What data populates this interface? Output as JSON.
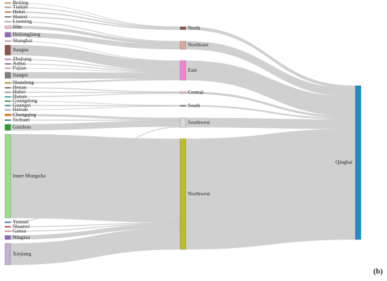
{
  "chart_data": {
    "type": "sankey",
    "link_color": "#c8c8c8",
    "panel_label": "(b)",
    "nodes": [
      {
        "name": "Beijing",
        "color": "#ff9f4a"
      },
      {
        "name": "Tianjin",
        "color": "#c49c94"
      },
      {
        "name": "Hebei",
        "color": "#ff7f0e"
      },
      {
        "name": "Shanxi",
        "color": "#7f7f7f"
      },
      {
        "name": "Liaoning",
        "color": "#c7c7c7"
      },
      {
        "name": "Jilin",
        "color": "#f7b6d2"
      },
      {
        "name": "Heilongjiang",
        "color": "#9467bd"
      },
      {
        "name": "Shanghai",
        "color": "#c5b0d5"
      },
      {
        "name": "Jiangsu",
        "color": "#8c564b"
      },
      {
        "name": "Zhejiang",
        "color": "#e377c2"
      },
      {
        "name": "Anhui",
        "color": "#9467bd"
      },
      {
        "name": "Fujian",
        "color": "#f7b6d2"
      },
      {
        "name": "Jiangxi",
        "color": "#7f7f7f"
      },
      {
        "name": "Shandong",
        "color": "#bcbd22"
      },
      {
        "name": "Henan",
        "color": "#8c564b"
      },
      {
        "name": "Hubei",
        "color": "#9fb3c8"
      },
      {
        "name": "Hunan",
        "color": "#17becf"
      },
      {
        "name": "Guangdong",
        "color": "#2ca02c"
      },
      {
        "name": "Guangxi",
        "color": "#17a2b8"
      },
      {
        "name": "Hainan",
        "color": "#aec7e8"
      },
      {
        "name": "Chongqing",
        "color": "#ff7f0e"
      },
      {
        "name": "Sichuan",
        "color": "#1f77b4"
      },
      {
        "name": "Guizhou",
        "color": "#2ca02c"
      },
      {
        "name": "Inner Mongolia",
        "color": "#98df8a"
      },
      {
        "name": "Yunnan",
        "color": "#1f77b4"
      },
      {
        "name": "Shaanxi",
        "color": "#d62728"
      },
      {
        "name": "Gansu",
        "color": "#ff9896"
      },
      {
        "name": "Ningxia",
        "color": "#9467bd"
      },
      {
        "name": "Xinjiang",
        "color": "#c5b0d5"
      },
      {
        "name": "North",
        "color": "#8c564b"
      },
      {
        "name": "Northeast",
        "color": "#dba99c"
      },
      {
        "name": "East",
        "color": "#f77fcf"
      },
      {
        "name": "Central",
        "color": "#f7b6d2"
      },
      {
        "name": "South",
        "color": "#7f7f7f"
      },
      {
        "name": "Southwest",
        "color": "#d9d9d9"
      },
      {
        "name": "Northwest",
        "color": "#bcbd22"
      },
      {
        "name": "Qinghai",
        "color": "#1f8cc4"
      }
    ],
    "links": [
      {
        "source": 0,
        "target": 29,
        "value": 0.5
      },
      {
        "source": 1,
        "target": 29,
        "value": 1
      },
      {
        "source": 2,
        "target": 29,
        "value": 1.5
      },
      {
        "source": 3,
        "target": 29,
        "value": 1.5
      },
      {
        "source": 4,
        "target": 30,
        "value": 1
      },
      {
        "source": 5,
        "target": 30,
        "value": 4
      },
      {
        "source": 6,
        "target": 30,
        "value": 7
      },
      {
        "source": 7,
        "target": 31,
        "value": 0.5
      },
      {
        "source": 8,
        "target": 31,
        "value": 15
      },
      {
        "source": 9,
        "target": 31,
        "value": 1
      },
      {
        "source": 10,
        "target": 31,
        "value": 1
      },
      {
        "source": 11,
        "target": 31,
        "value": 0.5
      },
      {
        "source": 12,
        "target": 31,
        "value": 9
      },
      {
        "source": 13,
        "target": 31,
        "value": 2
      },
      {
        "source": 14,
        "target": 32,
        "value": 1
      },
      {
        "source": 15,
        "target": 32,
        "value": 1
      },
      {
        "source": 16,
        "target": 32,
        "value": 1
      },
      {
        "source": 17,
        "target": 33,
        "value": 0.5
      },
      {
        "source": 18,
        "target": 33,
        "value": 1
      },
      {
        "source": 19,
        "target": 33,
        "value": 0.5
      },
      {
        "source": 20,
        "target": 34,
        "value": 3
      },
      {
        "source": 21,
        "target": 34,
        "value": 1
      },
      {
        "source": 22,
        "target": 34,
        "value": 9
      },
      {
        "source": 24,
        "target": 34,
        "value": 1
      },
      {
        "source": 23,
        "target": 35,
        "value": 125
      },
      {
        "source": 25,
        "target": 35,
        "value": 1
      },
      {
        "source": 26,
        "target": 35,
        "value": 1
      },
      {
        "source": 27,
        "target": 35,
        "value": 6
      },
      {
        "source": 28,
        "target": 35,
        "value": 32
      },
      {
        "source": 29,
        "target": 36,
        "value": 4.5
      },
      {
        "source": 30,
        "target": 36,
        "value": 12
      },
      {
        "source": 31,
        "target": 36,
        "value": 29
      },
      {
        "source": 32,
        "target": 36,
        "value": 3
      },
      {
        "source": 33,
        "target": 36,
        "value": 2
      },
      {
        "source": 34,
        "target": 36,
        "value": 14
      },
      {
        "source": 35,
        "target": 36,
        "value": 165
      }
    ]
  }
}
